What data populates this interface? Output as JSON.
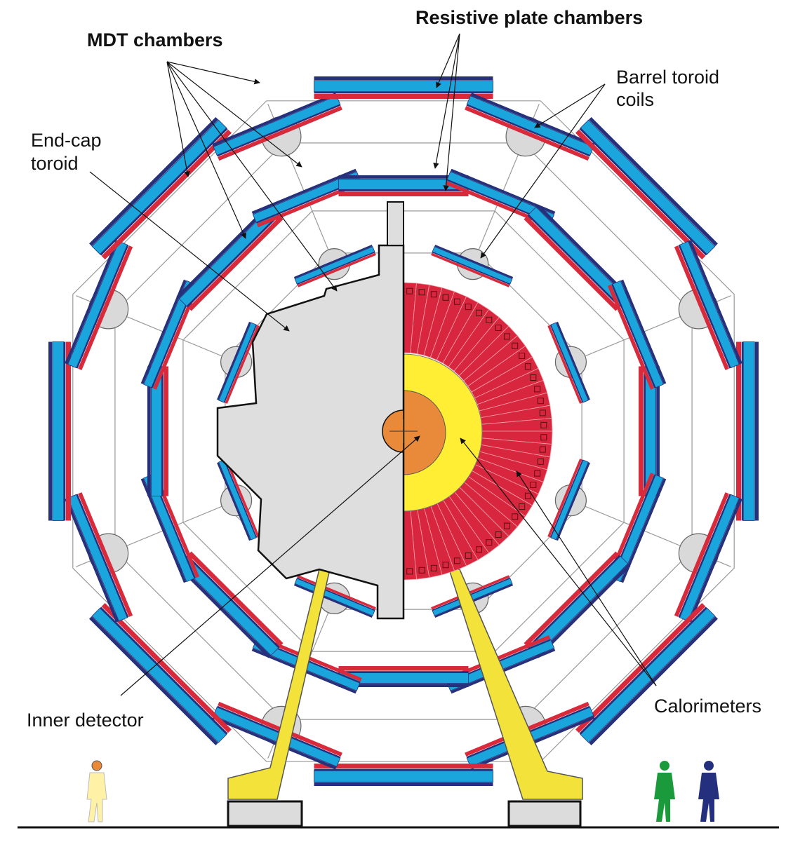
{
  "labels": {
    "mdt": "MDT chambers",
    "rpc": "Resistive plate chambers",
    "barrel_line1": "Barrel toroid",
    "barrel_line2": "coils",
    "endcap_line1": "End-cap",
    "endcap_line2": "toroid",
    "inner": "Inner detector",
    "calo": "Calorimeters"
  },
  "colors": {
    "mdt": "#1aa6dc",
    "rpc": "#d82a3a",
    "strip": "#27307a",
    "coil": "#d9d9d9",
    "endcap": "#dedede",
    "calo_outer": "#d7263d",
    "calo_mid": "#ffee33",
    "calo_inner": "#e9893a",
    "support": "#f2e23a",
    "person1": "#fff2a6",
    "person1_head": "#e9893a",
    "person2": "#1a9a3a",
    "person3": "#24307e"
  },
  "icons": [
    "arrow-icon",
    "person-icon"
  ]
}
